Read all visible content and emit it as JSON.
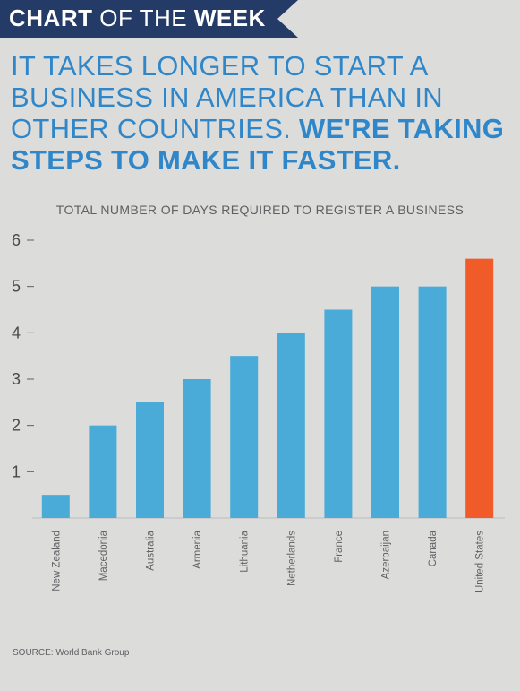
{
  "banner": {
    "bold_a": "CHART",
    "regular": " OF THE ",
    "bold_b": "WEEK",
    "bg_color": "#243b67"
  },
  "headline": {
    "regular": "IT TAKES LONGER TO START A BUSINESS IN AMERICA THAN IN OTHER COUNTRIES. ",
    "bold": "WE'RE TAKING STEPS TO MAKE IT FASTER.",
    "color": "#2f86c9"
  },
  "chart_data": {
    "type": "bar",
    "title": "TOTAL NUMBER OF DAYS REQUIRED TO REGISTER A BUSINESS",
    "categories": [
      "New Zealand",
      "Macedonia",
      "Australia",
      "Armenia",
      "Lithuania",
      "Netherlands",
      "France",
      "Azerbaijan",
      "Canada",
      "United States"
    ],
    "values": [
      0.5,
      2,
      2.5,
      3,
      3.5,
      4,
      4.5,
      5,
      5,
      5.6
    ],
    "yticks": [
      1,
      2,
      3,
      4,
      5,
      6
    ],
    "ylim": [
      0,
      6
    ],
    "grid": false,
    "bar_color": "#4aaad8",
    "highlight_color": "#f15a29",
    "highlight_index": 9
  },
  "source": "SOURCE: World Bank Group"
}
